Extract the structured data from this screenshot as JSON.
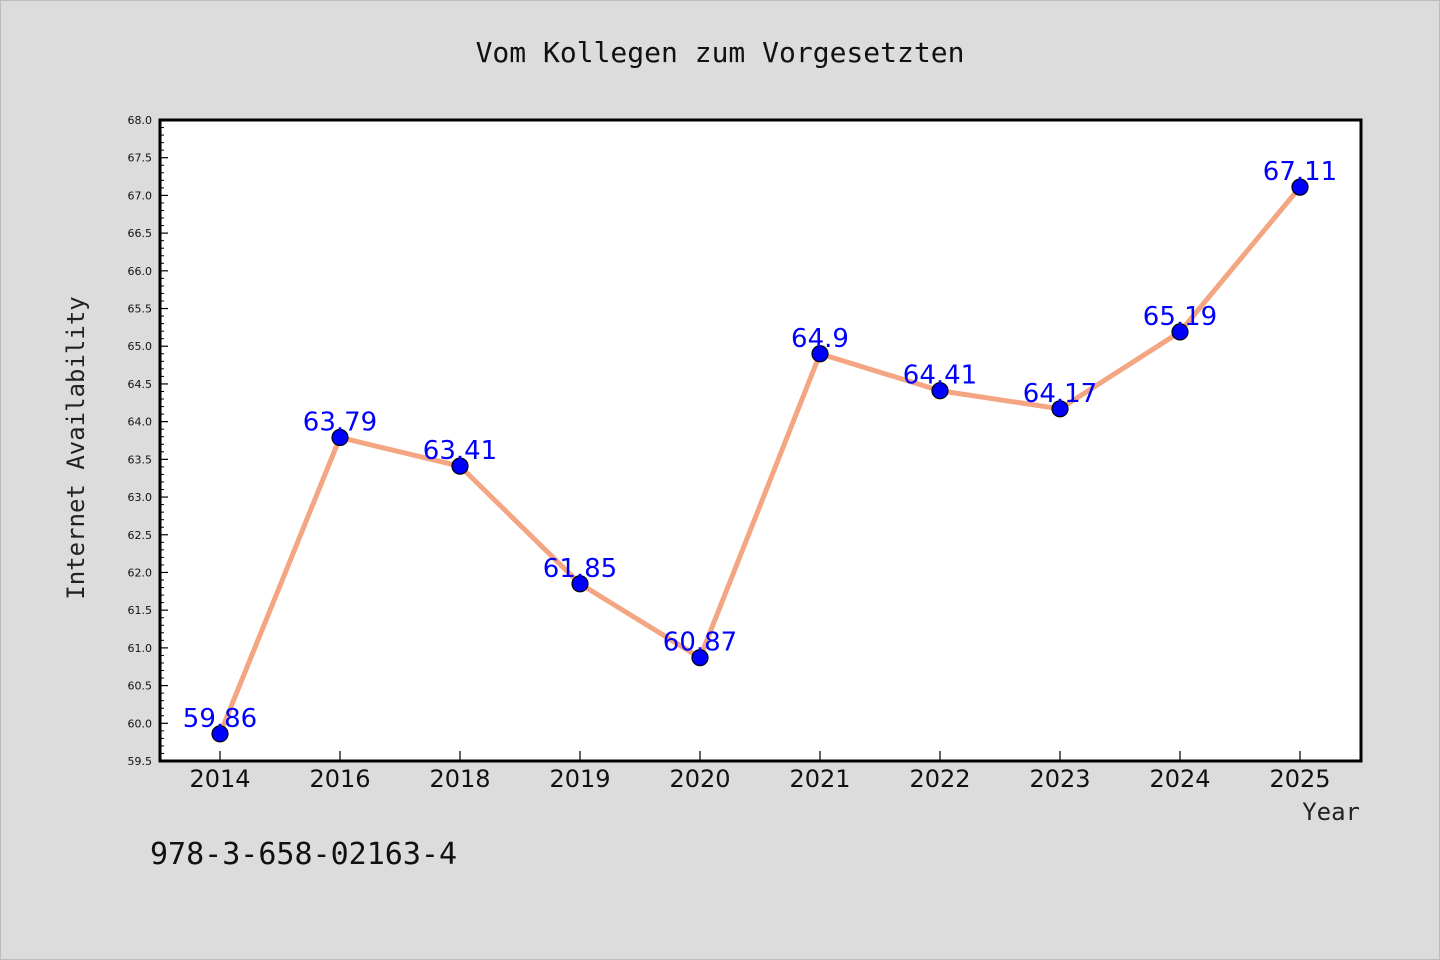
{
  "chart_data": {
    "type": "line",
    "title": "Vom Kollegen zum Vorgesetzten",
    "xlabel": "Year",
    "ylabel": "Internet Availability",
    "footnote": "978-3-658-02163-4",
    "categories": [
      "2014",
      "2016",
      "2018",
      "2019",
      "2020",
      "2021",
      "2022",
      "2023",
      "2024",
      "2025"
    ],
    "series": [
      {
        "values": [
          59.86,
          63.79,
          63.41,
          61.85,
          60.87,
          64.9,
          64.41,
          64.17,
          65.19,
          67.11
        ],
        "data_labels": [
          "59.86",
          "63.79",
          "63.41",
          "61.85",
          "60.87",
          "64.9",
          "64.41",
          "64.17",
          "65.19",
          "67.11"
        ],
        "line_color": "#f4a582",
        "marker_color": "#0000ff",
        "label_color": "#0000ff"
      }
    ],
    "ylim": [
      59.5,
      68.0
    ],
    "yticks": [
      "59.5",
      "60.0",
      "60.5",
      "61.0",
      "61.5",
      "62.0",
      "62.5",
      "63.0",
      "63.5",
      "64.0",
      "64.5",
      "65.0",
      "65.5",
      "66.0",
      "66.5",
      "67.0",
      "67.5",
      "68.0"
    ],
    "grid": false,
    "background_color": "#dcdcdc",
    "plot_background_color": "#ffffff"
  }
}
